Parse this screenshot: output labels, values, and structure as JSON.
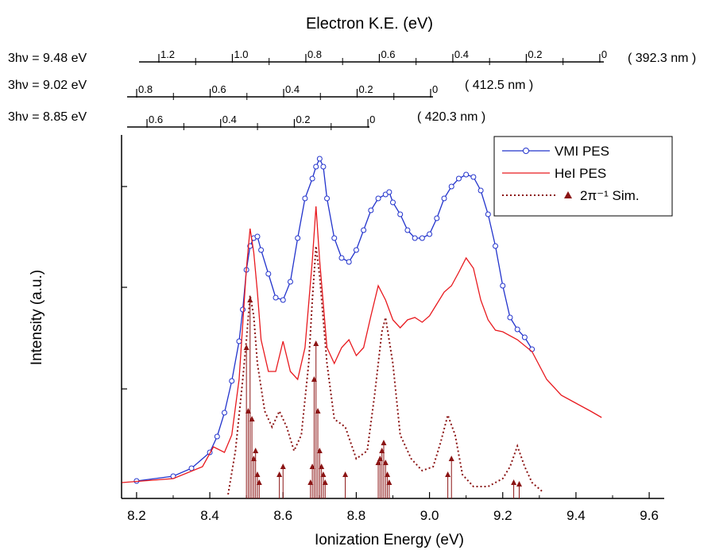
{
  "chart_data": {
    "type": "line",
    "ke_axis_title": "Electron K.E. (eV)",
    "x_label": "Ionization Energy (eV)",
    "y_label": "Intensity (a.u.)",
    "xlim": [
      8.159,
      9.641
    ],
    "xticks": [
      8.2,
      8.4,
      8.6,
      8.8,
      {
        "value": 9.0,
        "label": "9.0"
      },
      9.2,
      9.4,
      9.6
    ],
    "minor_xticks": [
      8.3,
      8.5,
      8.7,
      8.9,
      9.1,
      9.3,
      9.5
    ],
    "ylim": [
      0,
      458
    ],
    "yticks": [
      138,
      266,
      393
    ],
    "legend": "upper right",
    "ke_axes": [
      {
        "label": "3hν = 9.48 eV",
        "wavelength": "( 392.3 nm )",
        "xlim": [
          1.254,
          -0.011
        ],
        "ticks": [
          1.2,
          {
            "value": 1.0,
            "label": "1.0"
          },
          0.8,
          0.6,
          0.4,
          0.2,
          0
        ],
        "minor_ticks": [
          1.1,
          0.9,
          0.7,
          0.5,
          0.3,
          0.1
        ]
      },
      {
        "label": "3hν = 9.02 eV",
        "wavelength": "( 412.5 nm )",
        "xlim": [
          0.826,
          -0.0065
        ],
        "ticks": [
          0.8,
          0.6,
          0.4,
          0.2,
          0
        ],
        "minor_ticks": [
          0.7,
          0.5,
          0.3,
          0.1
        ]
      },
      {
        "label": "3hν = 8.85 eV",
        "wavelength": "( 420.3 nm )",
        "xlim": [
          0.654,
          -0.004
        ],
        "ticks": [
          0.6,
          0.4,
          0.2,
          0
        ],
        "minor_ticks": [
          0.5,
          0.3,
          0.1
        ]
      }
    ],
    "series": [
      {
        "name": "VMI PES",
        "color": "#2233cc",
        "style": "line-markers",
        "x": [
          8.2,
          8.3,
          8.35,
          8.4,
          8.42,
          8.44,
          8.46,
          8.48,
          8.49,
          8.5,
          8.51,
          8.52,
          8.53,
          8.54,
          8.56,
          8.58,
          8.6,
          8.62,
          8.64,
          8.66,
          8.68,
          8.69,
          8.7,
          8.71,
          8.72,
          8.74,
          8.76,
          8.78,
          8.8,
          8.82,
          8.84,
          8.86,
          8.88,
          8.89,
          8.9,
          8.92,
          8.94,
          8.96,
          8.98,
          9.0,
          9.02,
          9.04,
          9.06,
          9.08,
          9.1,
          9.12,
          9.14,
          9.16,
          9.18,
          9.2,
          9.22,
          9.24,
          9.26,
          9.28
        ],
        "values": [
          22,
          28,
          38,
          58,
          78,
          108,
          148,
          198,
          238,
          288,
          318,
          328,
          330,
          313,
          283,
          253,
          250,
          273,
          328,
          378,
          403,
          418,
          428,
          418,
          378,
          328,
          303,
          298,
          313,
          338,
          363,
          378,
          383,
          386,
          373,
          358,
          338,
          328,
          328,
          333,
          353,
          378,
          393,
          403,
          408,
          405,
          388,
          358,
          318,
          268,
          228,
          213,
          203,
          188
        ]
      },
      {
        "name": "HeI PES",
        "color": "#e8191e",
        "style": "solid",
        "x": [
          8.16,
          8.3,
          8.38,
          8.41,
          8.44,
          8.46,
          8.48,
          8.49,
          8.5,
          8.51,
          8.52,
          8.53,
          8.54,
          8.56,
          8.58,
          8.6,
          8.62,
          8.64,
          8.66,
          8.68,
          8.69,
          8.7,
          8.72,
          8.74,
          8.76,
          8.78,
          8.8,
          8.82,
          8.84,
          8.86,
          8.88,
          8.9,
          8.92,
          8.94,
          8.96,
          8.98,
          9.0,
          9.02,
          9.04,
          9.06,
          9.08,
          9.1,
          9.12,
          9.14,
          9.16,
          9.18,
          9.2,
          9.24,
          9.28,
          9.32,
          9.36,
          9.4,
          9.44,
          9.47
        ],
        "values": [
          20,
          25,
          40,
          65,
          58,
          80,
          150,
          220,
          290,
          340,
          310,
          260,
          200,
          160,
          160,
          198,
          160,
          150,
          190,
          300,
          368,
          300,
          190,
          170,
          190,
          200,
          180,
          190,
          230,
          268,
          250,
          225,
          215,
          225,
          228,
          222,
          230,
          245,
          260,
          268,
          285,
          303,
          290,
          250,
          225,
          212,
          210,
          200,
          185,
          150,
          130,
          120,
          110,
          102
        ]
      },
      {
        "name": "2π⁻¹ Sim.",
        "color": "#8b1414",
        "style": "dotted",
        "x": [
          8.45,
          8.47,
          8.49,
          8.5,
          8.51,
          8.52,
          8.53,
          8.55,
          8.57,
          8.59,
          8.61,
          8.63,
          8.65,
          8.67,
          8.68,
          8.69,
          8.7,
          8.72,
          8.74,
          8.77,
          8.8,
          8.83,
          8.85,
          8.87,
          8.88,
          8.9,
          8.92,
          8.95,
          8.98,
          9.01,
          9.03,
          9.05,
          9.07,
          9.09,
          9.12,
          9.16,
          9.2,
          9.22,
          9.24,
          9.26,
          9.28,
          9.31
        ],
        "values": [
          5,
          60,
          150,
          200,
          256,
          230,
          170,
          110,
          90,
          110,
          90,
          60,
          80,
          170,
          250,
          318,
          280,
          170,
          100,
          90,
          50,
          60,
          130,
          210,
          228,
          170,
          80,
          50,
          35,
          40,
          70,
          105,
          80,
          30,
          15,
          15,
          25,
          40,
          66,
          40,
          20,
          8
        ]
      }
    ],
    "sticks": {
      "color": "#8b1414",
      "x": [
        8.5,
        8.505,
        8.51,
        8.515,
        8.52,
        8.525,
        8.53,
        8.535,
        8.59,
        8.6,
        8.675,
        8.68,
        8.685,
        8.69,
        8.695,
        8.7,
        8.705,
        8.71,
        8.715,
        8.77,
        8.86,
        8.865,
        8.87,
        8.875,
        8.88,
        8.885,
        8.89,
        9.05,
        9.06,
        9.23,
        9.245
      ],
      "values": [
        190,
        110,
        250,
        100,
        50,
        60,
        30,
        20,
        30,
        40,
        20,
        40,
        150,
        195,
        110,
        60,
        40,
        30,
        20,
        30,
        45,
        50,
        60,
        70,
        45,
        30,
        20,
        30,
        50,
        20,
        18
      ]
    }
  }
}
